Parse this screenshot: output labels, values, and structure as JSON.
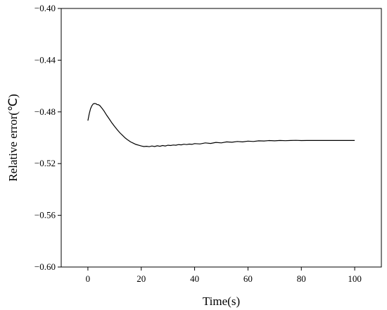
{
  "chart_data": {
    "type": "line",
    "title": "",
    "xlabel": "Time(s)",
    "ylabel": "Relative error(℃)",
    "xlim": [
      -10,
      110
    ],
    "ylim": [
      -0.6,
      -0.4
    ],
    "grid": false,
    "x_ticks": [
      0,
      20,
      40,
      60,
      80,
      100
    ],
    "x_tick_labels": [
      "0",
      "20",
      "40",
      "60",
      "80",
      "100"
    ],
    "y_ticks": [
      -0.4,
      -0.44,
      -0.48,
      -0.52,
      -0.56,
      -0.6
    ],
    "y_tick_labels": [
      "−0.40",
      "−0.44",
      "−0.48",
      "−0.52",
      "−0.56",
      "−0.60"
    ],
    "series": [
      {
        "name": "",
        "color": "#000000",
        "x": [
          0,
          0.5,
          1,
          1.5,
          2,
          2.5,
          3,
          3.5,
          4,
          4.5,
          5,
          5.5,
          6,
          7,
          8,
          9,
          10,
          11,
          12,
          13,
          14,
          15,
          16,
          17,
          18,
          19,
          20,
          21,
          22,
          23,
          24,
          25,
          26,
          27,
          28,
          29,
          30,
          31,
          32,
          33,
          34,
          35,
          36,
          37,
          38,
          39,
          40,
          42,
          44,
          46,
          48,
          50,
          52,
          54,
          56,
          58,
          60,
          62,
          64,
          66,
          68,
          70,
          72,
          74,
          76,
          78,
          80,
          82,
          84,
          86,
          88,
          90,
          92,
          94,
          96,
          98,
          100
        ],
        "y": [
          -0.4868,
          -0.4815,
          -0.4775,
          -0.4752,
          -0.4738,
          -0.4735,
          -0.4737,
          -0.4744,
          -0.4745,
          -0.4752,
          -0.4765,
          -0.4778,
          -0.4792,
          -0.4825,
          -0.4855,
          -0.4885,
          -0.4912,
          -0.4938,
          -0.4962,
          -0.4982,
          -0.5002,
          -0.5018,
          -0.5032,
          -0.5042,
          -0.5052,
          -0.5058,
          -0.5064,
          -0.5068,
          -0.5066,
          -0.5069,
          -0.5064,
          -0.5068,
          -0.5062,
          -0.5066,
          -0.506,
          -0.5064,
          -0.5058,
          -0.506,
          -0.5056,
          -0.5058,
          -0.5053,
          -0.5055,
          -0.505,
          -0.5053,
          -0.5049,
          -0.5051,
          -0.5045,
          -0.5048,
          -0.504,
          -0.5044,
          -0.5036,
          -0.504,
          -0.5032,
          -0.5035,
          -0.5029,
          -0.5032,
          -0.5026,
          -0.5029,
          -0.5024,
          -0.5025,
          -0.5022,
          -0.5024,
          -0.5021,
          -0.5023,
          -0.5021,
          -0.502,
          -0.5022,
          -0.5021,
          -0.5021,
          -0.5021,
          -0.5021,
          -0.5021,
          -0.5021,
          -0.5021,
          -0.5021,
          -0.5021,
          -0.5021
        ]
      }
    ]
  }
}
